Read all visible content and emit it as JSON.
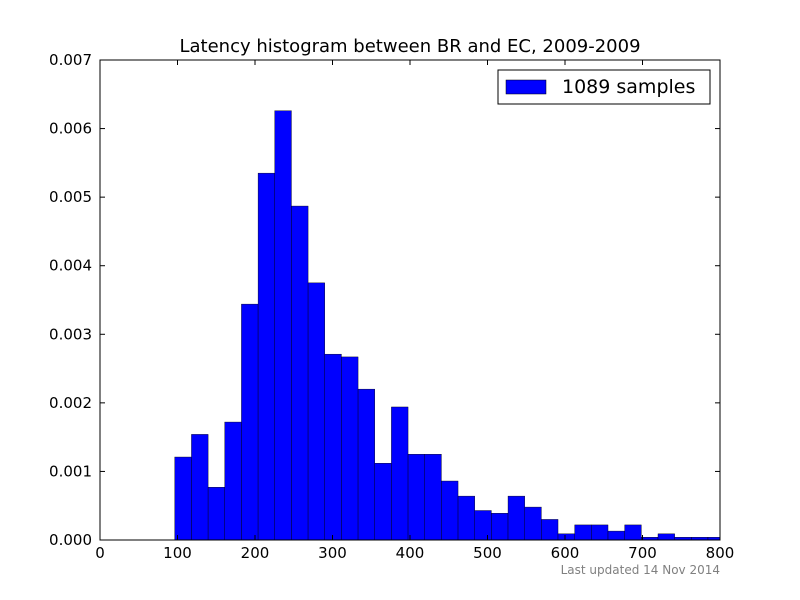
{
  "chart_data": {
    "type": "bar",
    "title": "Latency histogram between BR and EC, 2009-2009",
    "xlim": [
      0,
      800
    ],
    "ylim": [
      0,
      0.007
    ],
    "xticks": [
      "0",
      "100",
      "200",
      "300",
      "400",
      "500",
      "600",
      "700",
      "800"
    ],
    "yticks": [
      "0.000",
      "0.001",
      "0.002",
      "0.003",
      "0.004",
      "0.005",
      "0.006",
      "0.007"
    ],
    "legend": {
      "label": "1089 samples",
      "placement": "top-right"
    },
    "bar_color": "#0000ff",
    "bins": [
      {
        "x0": 96.5,
        "x1": 118.0,
        "value": 0.00121
      },
      {
        "x0": 118.0,
        "x1": 139.5,
        "value": 0.00154
      },
      {
        "x0": 139.5,
        "x1": 161.0,
        "value": 0.00077
      },
      {
        "x0": 161.0,
        "x1": 182.5,
        "value": 0.00172
      },
      {
        "x0": 182.5,
        "x1": 204.0,
        "value": 0.00344
      },
      {
        "x0": 204.0,
        "x1": 225.5,
        "value": 0.00535
      },
      {
        "x0": 225.5,
        "x1": 247.0,
        "value": 0.00626
      },
      {
        "x0": 247.0,
        "x1": 268.5,
        "value": 0.00487
      },
      {
        "x0": 268.5,
        "x1": 290.0,
        "value": 0.00375
      },
      {
        "x0": 290.0,
        "x1": 311.5,
        "value": 0.00271
      },
      {
        "x0": 311.5,
        "x1": 333.0,
        "value": 0.00267
      },
      {
        "x0": 333.0,
        "x1": 354.5,
        "value": 0.0022
      },
      {
        "x0": 354.5,
        "x1": 376.0,
        "value": 0.00112
      },
      {
        "x0": 376.0,
        "x1": 397.5,
        "value": 0.00194
      },
      {
        "x0": 397.5,
        "x1": 419.0,
        "value": 0.00125
      },
      {
        "x0": 419.0,
        "x1": 440.5,
        "value": 0.00125
      },
      {
        "x0": 440.5,
        "x1": 462.0,
        "value": 0.00086
      },
      {
        "x0": 462.0,
        "x1": 483.5,
        "value": 0.00064
      },
      {
        "x0": 483.5,
        "x1": 505.0,
        "value": 0.00043
      },
      {
        "x0": 505.0,
        "x1": 526.5,
        "value": 0.00039
      },
      {
        "x0": 526.5,
        "x1": 548.0,
        "value": 0.00064
      },
      {
        "x0": 548.0,
        "x1": 569.5,
        "value": 0.00048
      },
      {
        "x0": 569.5,
        "x1": 591.0,
        "value": 0.0003
      },
      {
        "x0": 591.0,
        "x1": 612.5,
        "value": 9e-05
      },
      {
        "x0": 612.5,
        "x1": 634.0,
        "value": 0.00022
      },
      {
        "x0": 634.0,
        "x1": 655.5,
        "value": 0.00022
      },
      {
        "x0": 655.5,
        "x1": 677.0,
        "value": 0.00013
      },
      {
        "x0": 677.0,
        "x1": 698.5,
        "value": 0.00022
      },
      {
        "x0": 698.5,
        "x1": 720.0,
        "value": 4e-05
      },
      {
        "x0": 720.0,
        "x1": 741.5,
        "value": 9e-05
      },
      {
        "x0": 741.5,
        "x1": 763.0,
        "value": 4e-05
      },
      {
        "x0": 763.0,
        "x1": 784.5,
        "value": 4e-05
      },
      {
        "x0": 784.5,
        "x1": 800.0,
        "value": 4e-05
      }
    ]
  },
  "footer": "Last updated 14 Nov 2014"
}
